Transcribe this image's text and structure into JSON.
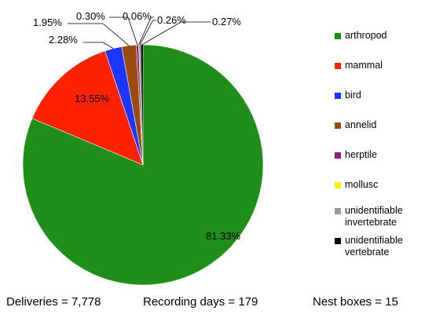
{
  "chart_data": {
    "type": "pie",
    "title": "",
    "series": [
      {
        "label": "arthropod",
        "value": 81.33,
        "display": "81.33%",
        "color": "#1f8f1a"
      },
      {
        "label": "mammal",
        "value": 13.55,
        "display": "13.55%",
        "color": "#ff2200"
      },
      {
        "label": "bird",
        "value": 2.28,
        "display": "2.28%",
        "color": "#1e35ff"
      },
      {
        "label": "annelid",
        "value": 1.95,
        "display": "1.95%",
        "color": "#9a4b0f"
      },
      {
        "label": "herptile",
        "value": 0.3,
        "display": "0.30%",
        "color": "#8a1a8a"
      },
      {
        "label": "mollusc",
        "value": 0.06,
        "display": "0.06%",
        "color": "#ffee00"
      },
      {
        "label": "unidentifiable invertebrate",
        "value": 0.26,
        "display": "0.26%",
        "color": "#999999"
      },
      {
        "label": "unidentifiable vertebrate",
        "value": 0.27,
        "display": "0.27%",
        "color": "#000000"
      }
    ],
    "legend_position": "right"
  },
  "footer": {
    "deliveries": "Deliveries = 7,778",
    "recording_days": "Recording days =  179",
    "nest_boxes": "Nest boxes = 15"
  }
}
